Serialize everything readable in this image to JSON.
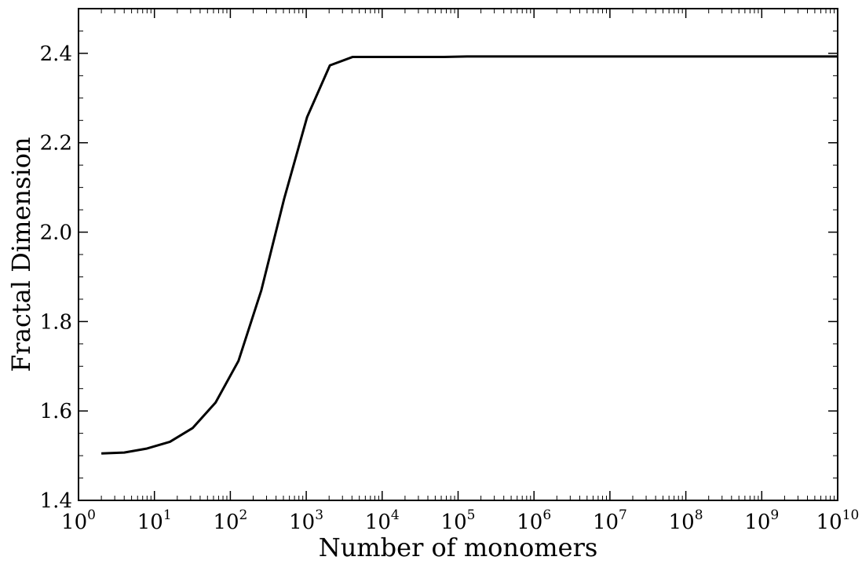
{
  "chart_data": {
    "type": "line",
    "title": "",
    "xlabel": "Number of monomers",
    "ylabel": "Fractal Dimension",
    "xscale": "log",
    "xlim": [
      1,
      10000000000
    ],
    "ylim": [
      1.4,
      2.5
    ],
    "x_ticks": [
      {
        "base": "10",
        "exp": "0"
      },
      {
        "base": "10",
        "exp": "1"
      },
      {
        "base": "10",
        "exp": "2"
      },
      {
        "base": "10",
        "exp": "3"
      },
      {
        "base": "10",
        "exp": "4"
      },
      {
        "base": "10",
        "exp": "5"
      },
      {
        "base": "10",
        "exp": "6"
      },
      {
        "base": "10",
        "exp": "7"
      },
      {
        "base": "10",
        "exp": "8"
      },
      {
        "base": "10",
        "exp": "9"
      },
      {
        "base": "10",
        "exp": "10"
      }
    ],
    "y_ticks": [
      "1.4",
      "1.6",
      "1.8",
      "2.0",
      "2.2",
      "2.4"
    ],
    "grid": false,
    "line_color": "#000000",
    "series": [
      {
        "x": [
          2,
          4,
          8,
          16,
          32,
          64,
          128,
          256,
          512,
          1024,
          2048,
          4096,
          8192,
          16384,
          65536,
          131072,
          1000000,
          10000000,
          100000000,
          1000000000,
          10000000000
        ],
        "y": [
          1.505,
          1.507,
          1.516,
          1.531,
          1.562,
          1.619,
          1.712,
          1.87,
          2.075,
          2.257,
          2.373,
          2.392,
          2.392,
          2.392,
          2.392,
          2.393,
          2.393,
          2.393,
          2.393,
          2.393,
          2.393
        ]
      }
    ]
  }
}
